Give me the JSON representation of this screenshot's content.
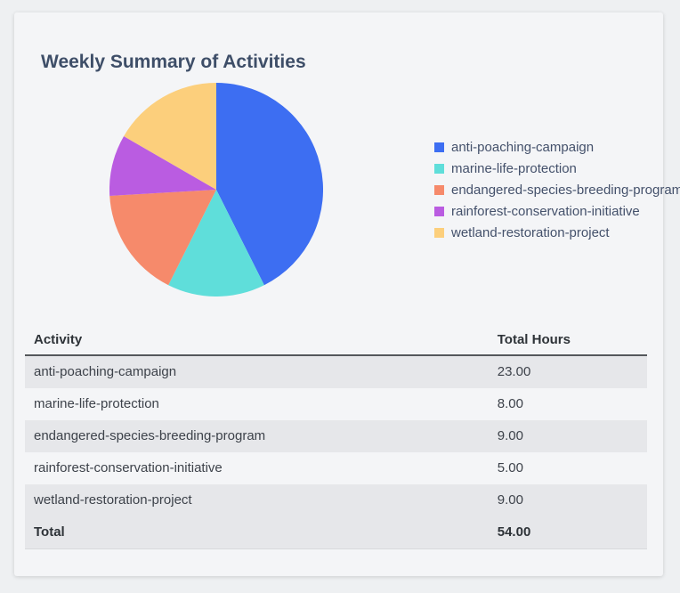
{
  "card": {
    "title": "Weekly Summary of Activities"
  },
  "chart_data": {
    "type": "pie",
    "title": "Weekly Summary of Activities",
    "categories": [
      "anti-poaching-campaign",
      "marine-life-protection",
      "endangered-species-breeding-program",
      "rainforest-conservation-initiative",
      "wetland-restoration-project"
    ],
    "values": [
      23,
      8,
      9,
      5,
      9
    ],
    "unit": "hours",
    "colors": [
      "#3d6ef2",
      "#5fdeda",
      "#f68a6b",
      "#ba5ce1",
      "#fccf7c"
    ],
    "legend_position": "right",
    "start_angle_deg": 0,
    "direction": "clockwise"
  },
  "table": {
    "headers": [
      "Activity",
      "Total Hours"
    ],
    "rows": [
      [
        "anti-poaching-campaign",
        "23.00"
      ],
      [
        "marine-life-protection",
        "8.00"
      ],
      [
        "endangered-species-breeding-program",
        "9.00"
      ],
      [
        "rainforest-conservation-initiative",
        "5.00"
      ],
      [
        "wetland-restoration-project",
        "9.00"
      ]
    ],
    "total_row": {
      "label": "Total",
      "value": "54.00"
    }
  }
}
